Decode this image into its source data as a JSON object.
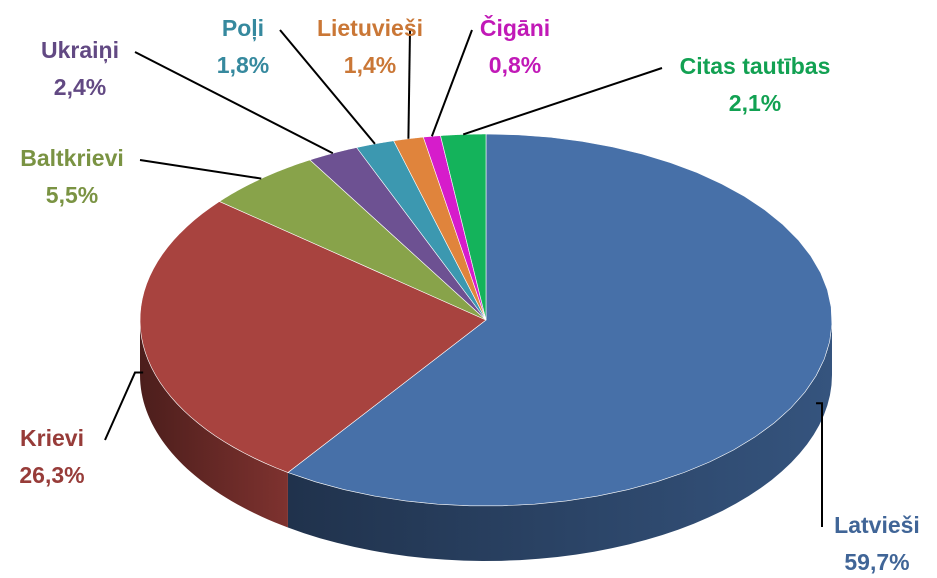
{
  "chart_data": {
    "type": "pie",
    "categories": [
      "Latvieši",
      "Krievi",
      "Baltkrievi",
      "Ukraiņi",
      "Poļi",
      "Lietuvieši",
      "Čigāni",
      "Citas tautības"
    ],
    "values": [
      59.7,
      26.3,
      5.5,
      2.4,
      1.8,
      1.4,
      0.8,
      2.1
    ],
    "value_labels": [
      "59,7%",
      "26,3%",
      "5,5%",
      "2,4%",
      "1,8%",
      "1,4%",
      "0,8%",
      "2,1%"
    ],
    "colors": [
      "#4770a8",
      "#a8433f",
      "#88a34a",
      "#6d5192",
      "#3c98b0",
      "#e0843c",
      "#d61ccb",
      "#14b35b"
    ]
  }
}
